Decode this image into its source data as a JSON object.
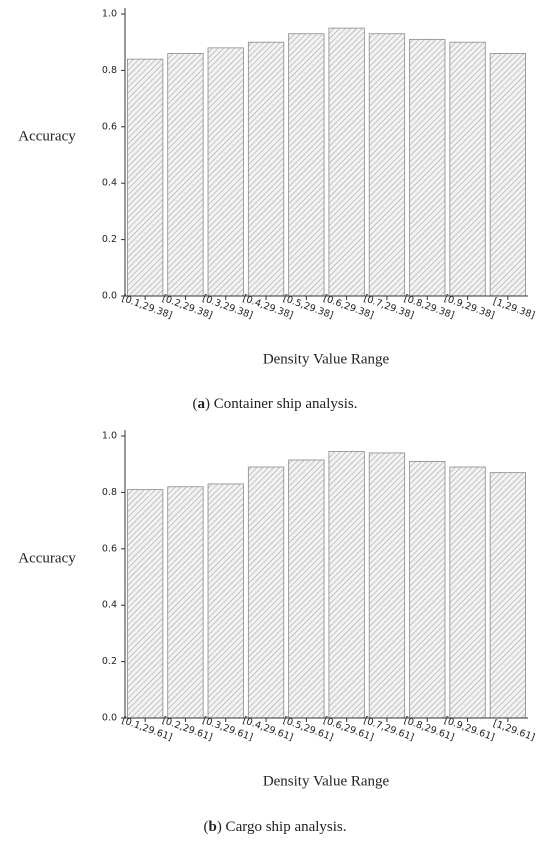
{
  "chart_data": [
    {
      "type": "bar",
      "ylabel": "Accuracy",
      "xlabel": "Density Value Range",
      "caption": [
        "(",
        "a",
        ") Container ship analysis."
      ],
      "categories": [
        "[0.1,29.38]",
        "[0.2,29.38]",
        "[0.3,29.38]",
        "[0.4,29.38]",
        "[0.5,29.38]",
        "[0.6,29.38]",
        "[0.7,29.38]",
        "[0.8,29.38]",
        "[0.9,29.38]",
        "[1,29.38]"
      ],
      "values": [
        0.84,
        0.86,
        0.88,
        0.9,
        0.93,
        0.95,
        0.93,
        0.91,
        0.9,
        0.86
      ],
      "color": "#d9d9d9",
      "ylim": [
        0,
        1
      ],
      "yticks": [
        {
          "value": 0,
          "label": "0.0"
        },
        0.2,
        0.4,
        0.6,
        0.8,
        {
          "value": 1,
          "label": "1.0"
        }
      ]
    },
    {
      "type": "bar",
      "ylabel": "Accuracy",
      "xlabel": "Density Value Range",
      "caption": [
        "(",
        "b",
        ") Cargo ship analysis."
      ],
      "categories": [
        "[0.1,29.61]",
        "[0.2,29.61]",
        "[0.3,29.61]",
        "[0.4,29.61]",
        "[0.5,29.61]",
        "[0.6,29.61]",
        "[0.7,29.61]",
        "[0.8,29.61]",
        "[0.9,29.61]",
        "[1,29.61]"
      ],
      "values": [
        0.81,
        0.82,
        0.83,
        0.89,
        0.915,
        0.945,
        0.94,
        0.91,
        0.89,
        0.87
      ],
      "color": "#d9d9d9",
      "ylim": [
        0,
        1
      ],
      "yticks": [
        {
          "value": 0,
          "label": "0.0"
        },
        0.2,
        0.4,
        0.6,
        0.8,
        {
          "value": 1,
          "label": "1.0"
        }
      ]
    }
  ]
}
